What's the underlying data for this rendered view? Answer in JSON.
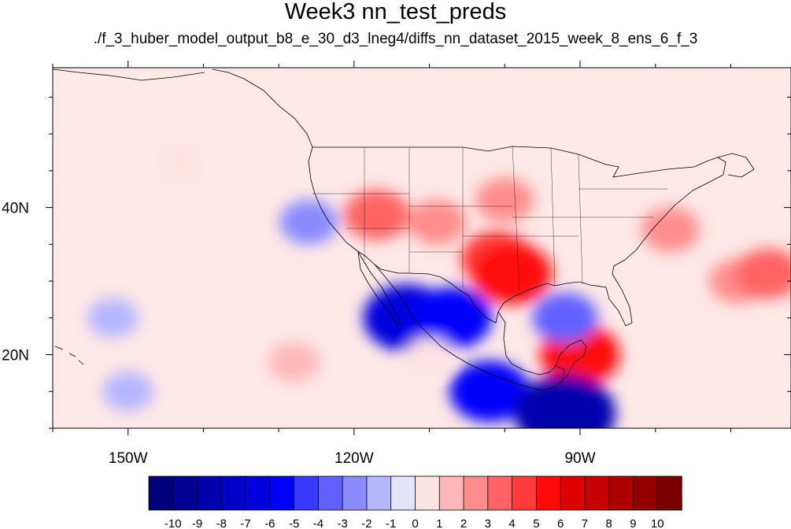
{
  "chart_data": {
    "type": "heatmap",
    "title": "Week3 nn_test_preds",
    "subtitle": "./f_3_huber_model_output_b8_e_30_d3_lneg4/diffs_nn_dataset_2015_week_8_ens_6_f_3",
    "projection": "cylindrical equidistant",
    "lon_range": [
      -160,
      -62
    ],
    "lat_range": [
      10,
      59
    ],
    "x_ticks": [
      {
        "value": -150,
        "label": "150W"
      },
      {
        "value": -120,
        "label": "120W"
      },
      {
        "value": -90,
        "label": "90W"
      }
    ],
    "y_ticks": [
      {
        "value": 40,
        "label": "40N"
      },
      {
        "value": 20,
        "label": "20N"
      }
    ],
    "colorbar": {
      "orientation": "horizontal",
      "labels": [
        "-10",
        "-9",
        "-8",
        "-7",
        "-6",
        "-5",
        "-4",
        "-3",
        "-2",
        "-1",
        "0",
        "1",
        "2",
        "3",
        "4",
        "5",
        "6",
        "7",
        "8",
        "9",
        "10"
      ],
      "colors": [
        "#00007a",
        "#000093",
        "#0000ad",
        "#0000c6",
        "#0000df",
        "#0000fa",
        "#3838ff",
        "#6060ff",
        "#8b8bff",
        "#b6b6ff",
        "#e3e3fb",
        "#ffe3e3",
        "#ffb7b7",
        "#ff8d8d",
        "#ff6363",
        "#ff3a3a",
        "#ff0a0a",
        "#df0000",
        "#c60000",
        "#ad0000",
        "#930000",
        "#7a0000"
      ]
    },
    "anomalies": [
      {
        "lon": -109,
        "lat": 38,
        "value": 3
      },
      {
        "lon": -117,
        "lat": 39,
        "value": 4
      },
      {
        "lon": -101,
        "lat": 33,
        "value": 5
      },
      {
        "lon": -99,
        "lat": 31,
        "value": 6
      },
      {
        "lon": -100,
        "lat": 41,
        "value": 3
      },
      {
        "lon": -78,
        "lat": 37,
        "value": 3
      },
      {
        "lon": -69,
        "lat": 30,
        "value": 3
      },
      {
        "lon": -65,
        "lat": 31,
        "value": 4
      },
      {
        "lon": -90,
        "lat": 20,
        "value": 6
      },
      {
        "lon": -143,
        "lat": 46,
        "value": 1
      },
      {
        "lon": -126,
        "lat": 38,
        "value": -3
      },
      {
        "lon": -113,
        "lat": 25,
        "value": -7
      },
      {
        "lon": -107,
        "lat": 25,
        "value": -6
      },
      {
        "lon": -92,
        "lat": 25,
        "value": -4
      },
      {
        "lon": -102,
        "lat": 15,
        "value": -6
      },
      {
        "lon": -92,
        "lat": 12,
        "value": -9
      },
      {
        "lon": -152,
        "lat": 25,
        "value": -2
      },
      {
        "lon": -128,
        "lat": 19,
        "value": 2
      },
      {
        "lon": -150,
        "lat": 15,
        "value": -2
      },
      {
        "lon": -110,
        "lat": 20,
        "value": 1
      }
    ]
  },
  "colors": {
    "background_ocean": "#ffe8e8",
    "map_border": "#000000"
  }
}
